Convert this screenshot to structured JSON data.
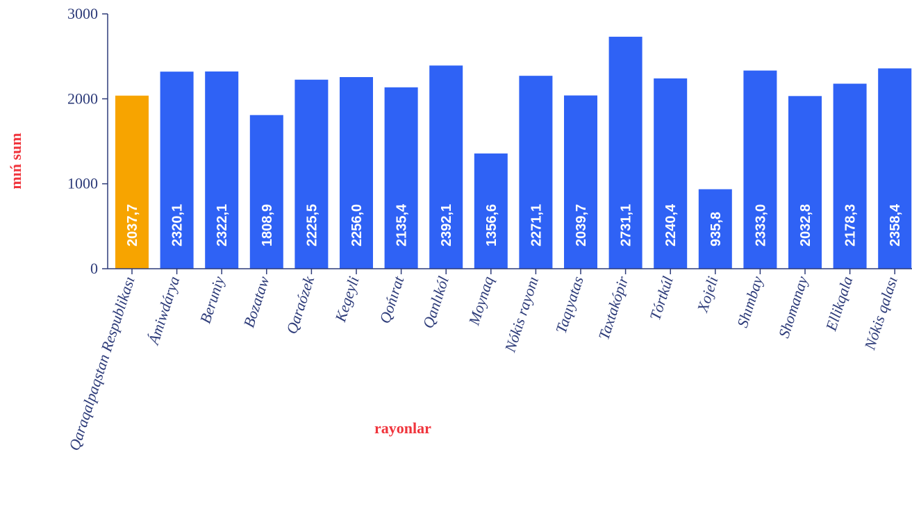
{
  "chart_data": {
    "type": "bar",
    "title": "",
    "xlabel": "rayonlar",
    "ylabel": "mıń sum",
    "ylim": [
      0,
      3000
    ],
    "yticks": [
      "0",
      "1000",
      "2000",
      "3000"
    ],
    "ytick_values": [
      0,
      1000,
      2000,
      3000
    ],
    "grid": false,
    "legend": "none",
    "colors": {
      "default_bar": "#2f62f5",
      "highlight_bar": "#f7a400",
      "axis_title": "#f0343c",
      "tick_text": "#2d3b79"
    },
    "highlight_index": 0,
    "categories": [
      "Qaraqalpaqstan Respublikası",
      "Ámiwdárya",
      "Beruniy",
      "Bozataw",
      "Qaraózek",
      "Kegeyli",
      "Qońırat",
      "Qanlıkól",
      "Moynaq",
      "Nókis rayonı",
      "Taqıyatas",
      "Taxtakópir",
      "Tórtkúl",
      "Xojeli",
      "Shımbay",
      "Shomanay",
      "Ellikqala",
      "Nókis qalası"
    ],
    "values": [
      2037.7,
      2320.1,
      2322.1,
      1808.9,
      2225.5,
      2256.0,
      2135.4,
      2392.1,
      1356.6,
      2271.1,
      2039.7,
      2731.1,
      2240.4,
      935.8,
      2333.0,
      2032.8,
      2178.3,
      2358.4
    ],
    "value_labels": [
      "2037,7",
      "2320,1",
      "2322,1",
      "1808,9",
      "2225,5",
      "2256,0",
      "2135,4",
      "2392,1",
      "1356,6",
      "2271,1",
      "2039,7",
      "2731,1",
      "2240,4",
      "935,8",
      "2333,0",
      "2032,8",
      "2178,3",
      "2358,4"
    ]
  }
}
